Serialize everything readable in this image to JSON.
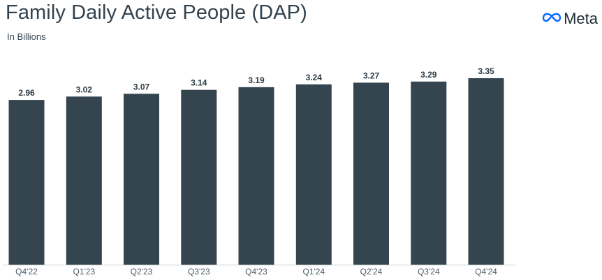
{
  "header": {
    "title": "Family Daily Active People (DAP)",
    "subtitle": "In Billions"
  },
  "brand": {
    "name": "Meta",
    "icon": "meta-infinity-icon",
    "color": "#0866ff"
  },
  "colors": {
    "bar": "#34454f",
    "title": "#33434f"
  },
  "chart_data": {
    "type": "bar",
    "title": "Family Daily Active People (DAP)",
    "subtitle": "In Billions",
    "categories": [
      "Q4'22",
      "Q1'23",
      "Q2'23",
      "Q3'23",
      "Q4'23",
      "Q1'24",
      "Q2'24",
      "Q3'24",
      "Q4'24"
    ],
    "values": [
      2.96,
      3.02,
      3.07,
      3.14,
      3.19,
      3.24,
      3.27,
      3.29,
      3.35
    ],
    "value_labels": [
      "2.96",
      "3.02",
      "3.07",
      "3.14",
      "3.19",
      "3.24",
      "3.27",
      "3.29",
      "3.35"
    ],
    "xlabel": "",
    "ylabel": "",
    "ylim": [
      0,
      3.35
    ],
    "grid": false,
    "legend": "none"
  }
}
